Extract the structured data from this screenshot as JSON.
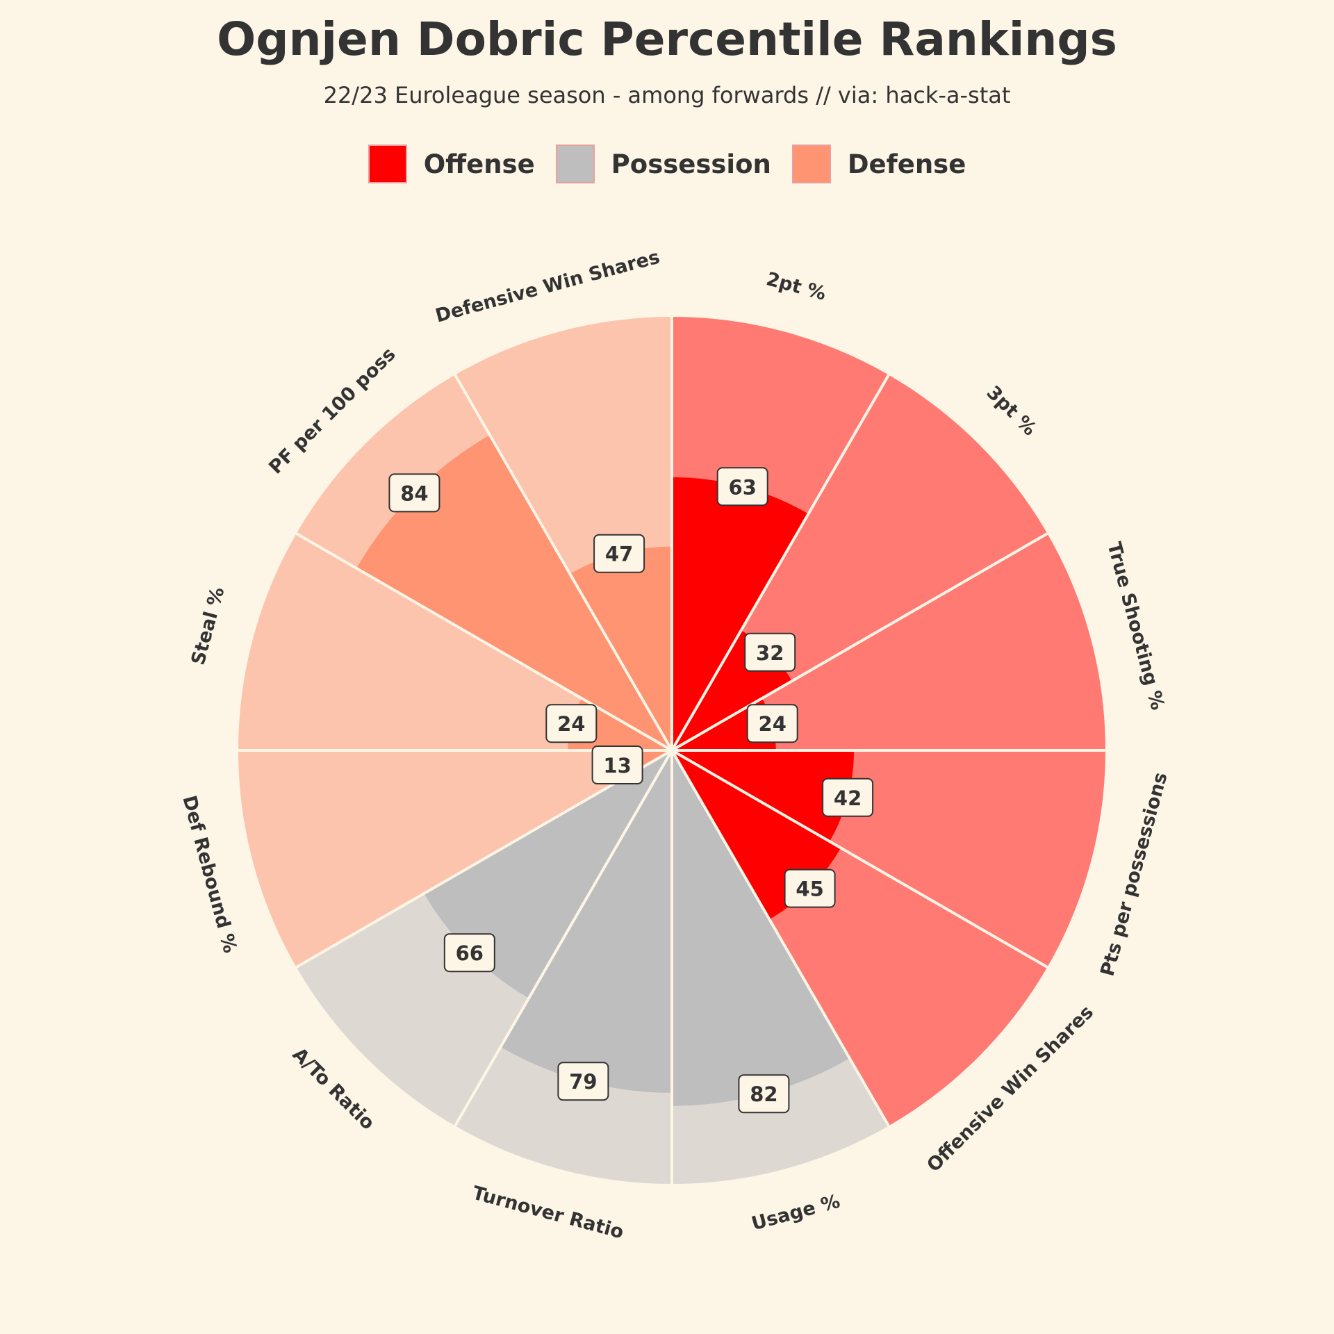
{
  "chart_data": {
    "type": "pie",
    "title": "Ognjen Dobric Percentile Rankings",
    "subtitle": "22/23 Euroleague season - among forwards // via: hack-a-stat",
    "legend": [
      {
        "name": "Offense",
        "color": "#ff0000"
      },
      {
        "name": "Possession",
        "color": "#bebebe"
      },
      {
        "name": "Defense",
        "color": "#ff9473"
      }
    ],
    "legend_placement": "top-center",
    "range": [
      0,
      100
    ],
    "categories": [
      "2pt %",
      "3pt %",
      "True Shooting %",
      "Pts per possessions",
      "Offensive Win Shares",
      "Usage %",
      "Turnover Ratio",
      "A/To Ratio",
      "Def Rebound %",
      "Steal %",
      "PF per 100 poss",
      "Defensive Win Shares"
    ],
    "groups": [
      "Offense",
      "Offense",
      "Offense",
      "Offense",
      "Offense",
      "Possession",
      "Possession",
      "Possession",
      "Defense",
      "Defense",
      "Defense",
      "Defense"
    ],
    "values": [
      63,
      32,
      24,
      42,
      45,
      82,
      79,
      66,
      13,
      24,
      84,
      47
    ],
    "colors": {
      "Offense": {
        "fill": "#ff0000",
        "background": "#ff7a73"
      },
      "Possession": {
        "fill": "#bebebe",
        "background": "#ddd8d2"
      },
      "Defense": {
        "fill": "#ff9473",
        "background": "#fcc4ad"
      }
    }
  }
}
